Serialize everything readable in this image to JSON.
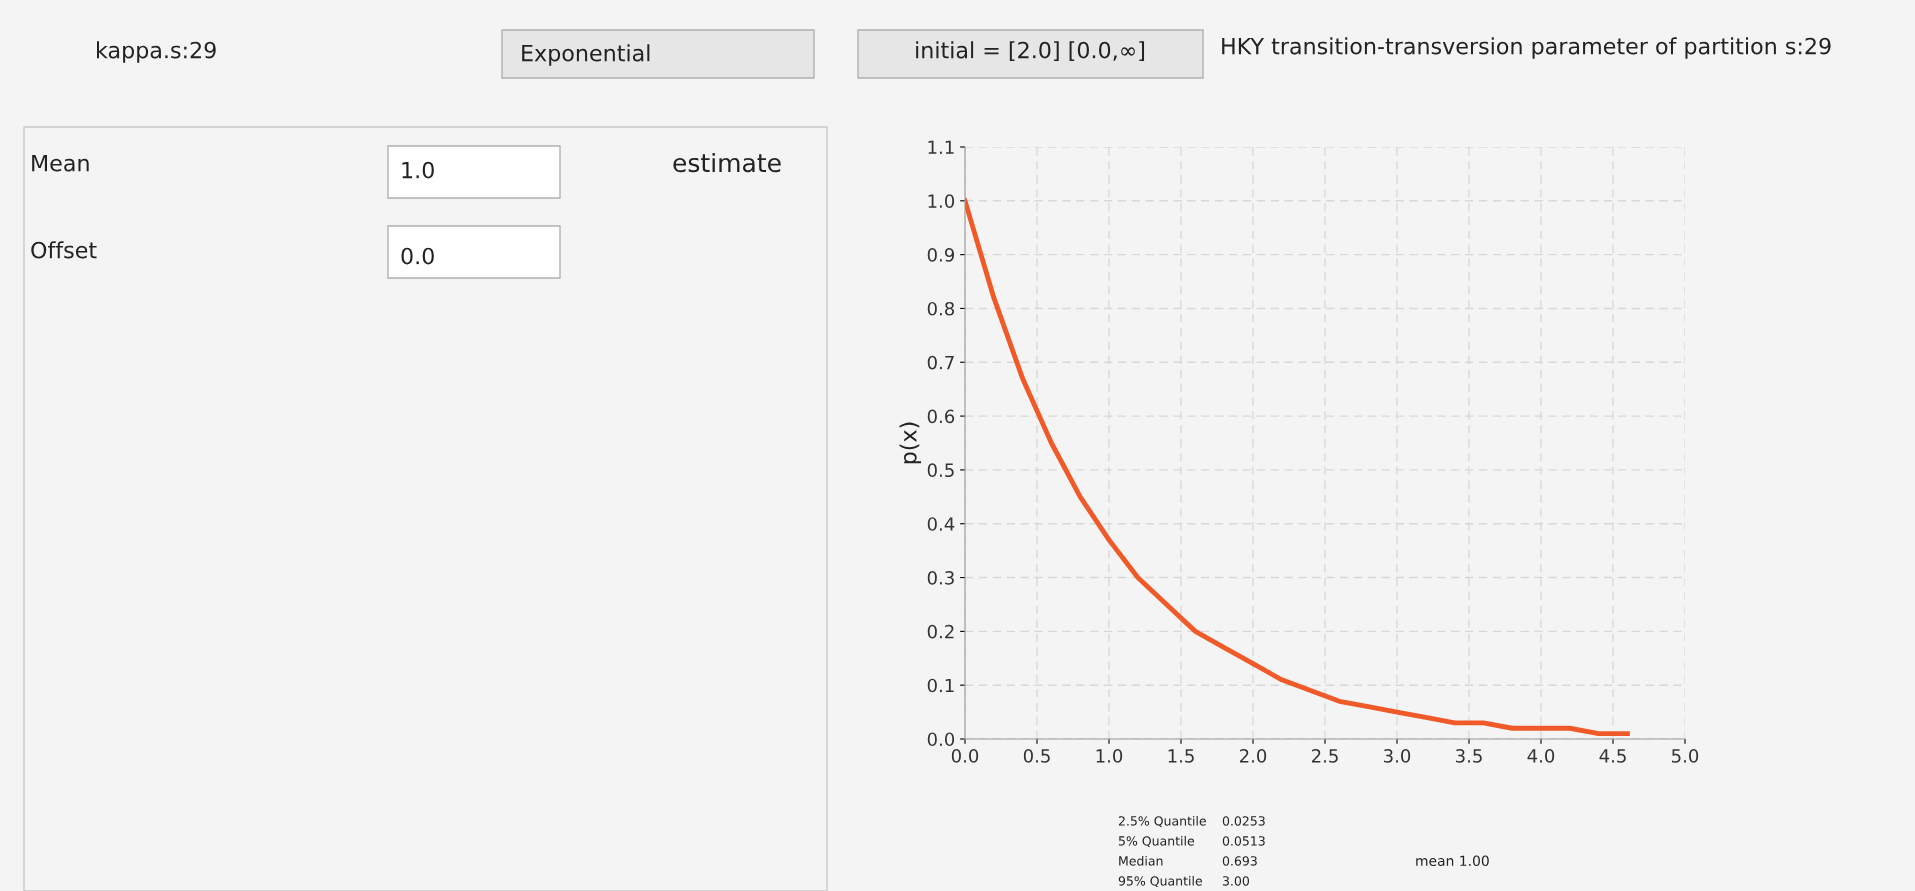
{
  "chart_data": {
    "type": "line",
    "ylabel": "p(x)",
    "x": [
      0.0,
      0.2,
      0.4,
      0.6,
      0.8,
      1.0,
      1.2,
      1.4,
      1.6,
      1.8,
      2.0,
      2.2,
      2.4,
      2.6,
      2.8,
      3.0,
      3.2,
      3.4,
      3.6,
      3.8,
      4.0,
      4.2,
      4.4,
      4.6
    ],
    "series": [
      {
        "color": "#f05a28",
        "values": [
          1.0,
          0.82,
          0.67,
          0.55,
          0.45,
          0.37,
          0.3,
          0.25,
          0.2,
          0.17,
          0.14,
          0.11,
          0.09,
          0.07,
          0.06,
          0.05,
          0.04,
          0.03,
          0.03,
          0.02,
          0.02,
          0.02,
          0.01,
          0.01
        ]
      }
    ],
    "xlim": [
      0.0,
      5.0
    ],
    "ylim": [
      0.0,
      1.1
    ],
    "xticks": [
      {
        "value": 0,
        "label": "0.0"
      },
      {
        "value": 0.5,
        "label": "0.5"
      },
      {
        "value": 1,
        "label": "1.0"
      },
      {
        "value": 1.5,
        "label": "1.5"
      },
      {
        "value": 2,
        "label": "2.0"
      },
      {
        "value": 2.5,
        "label": "2.5"
      },
      {
        "value": 3,
        "label": "3.0"
      },
      {
        "value": 3.5,
        "label": "3.5"
      },
      {
        "value": 4,
        "label": "4.0"
      },
      {
        "value": 4.5,
        "label": "4.5"
      },
      {
        "value": 5,
        "label": "5.0"
      }
    ],
    "yticks": [
      {
        "value": 0,
        "label": "0.0"
      },
      {
        "value": 0.1,
        "label": "0.1"
      },
      {
        "value": 0.2,
        "label": "0.2"
      },
      {
        "value": 0.3,
        "label": "0.3"
      },
      {
        "value": 0.4,
        "label": "0.4"
      },
      {
        "value": 0.5,
        "label": "0.5"
      },
      {
        "value": 0.6,
        "label": "0.6"
      },
      {
        "value": 0.7,
        "label": "0.7"
      },
      {
        "value": 0.8,
        "label": "0.8"
      },
      {
        "value": 0.9,
        "label": "0.9"
      },
      {
        "value": 1.0,
        "label": "1.0"
      },
      {
        "value": 1.1,
        "label": "1.1"
      }
    ],
    "grid": true,
    "marker": "none",
    "line_style": "solid",
    "annotations": [
      "kappa.s:29",
      "Exponential",
      "initial = [2.0] [0.0,∞]",
      "HKY transition-transversion parameter of partition s:29",
      "Mean",
      "1.0",
      "estimate",
      "Offset",
      "0.0",
      "2.5% Quantile",
      "0.0253",
      "5% Quantile",
      "0.0513",
      "Median",
      "0.693",
      "95% Quantile",
      "3.00",
      "mean 1.00"
    ]
  }
}
